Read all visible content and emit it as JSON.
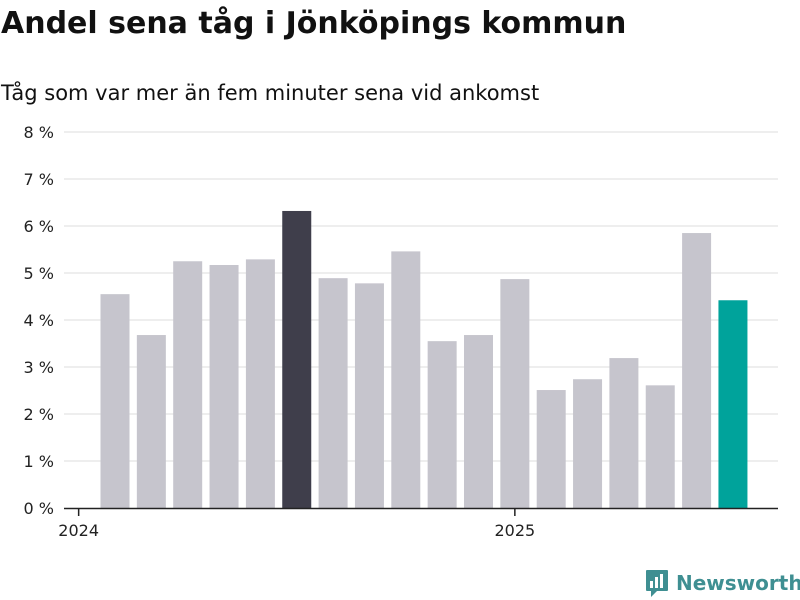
{
  "chart_data": {
    "type": "bar",
    "title": "Andel sena tåg i Jönköpings kommun",
    "subtitle": "Tåg som var mer än fem minuter sena vid ankomst",
    "xlabel": "",
    "ylabel": "",
    "ylim": [
      0,
      8
    ],
    "y_ticks": [
      "0 %",
      "1 %",
      "2 %",
      "3 %",
      "4 %",
      "5 %",
      "6 %",
      "7 %",
      "8 %"
    ],
    "x_ticks": [
      {
        "label": "2024",
        "category": "2024-01"
      },
      {
        "label": "2025",
        "category": "2025-01"
      }
    ],
    "grid": true,
    "legend": "none",
    "categories": [
      "2024-02",
      "2024-03",
      "2024-04",
      "2024-05",
      "2024-06",
      "2024-07",
      "2024-08",
      "2024-09",
      "2024-10",
      "2024-11",
      "2024-12",
      "2025-01",
      "2025-02",
      "2025-03",
      "2025-04",
      "2025-05",
      "2025-06",
      "2025-07"
    ],
    "values": [
      4.55,
      3.68,
      5.25,
      5.17,
      5.29,
      6.32,
      4.89,
      4.78,
      5.46,
      3.55,
      3.68,
      4.87,
      2.51,
      2.74,
      3.19,
      2.61,
      5.85,
      4.42
    ],
    "colors": {
      "default": "#c6c5cd",
      "highlight_max": "#3f3e4b",
      "latest": "#00a39b",
      "grid": "#dddddd",
      "axis": "#222222"
    },
    "highlighted_max_category": "2024-07",
    "latest_category": "2025-07"
  },
  "branding": {
    "name": "Newsworthy",
    "icon": "newsworthy-logo-icon",
    "color": "#3f8f92"
  }
}
